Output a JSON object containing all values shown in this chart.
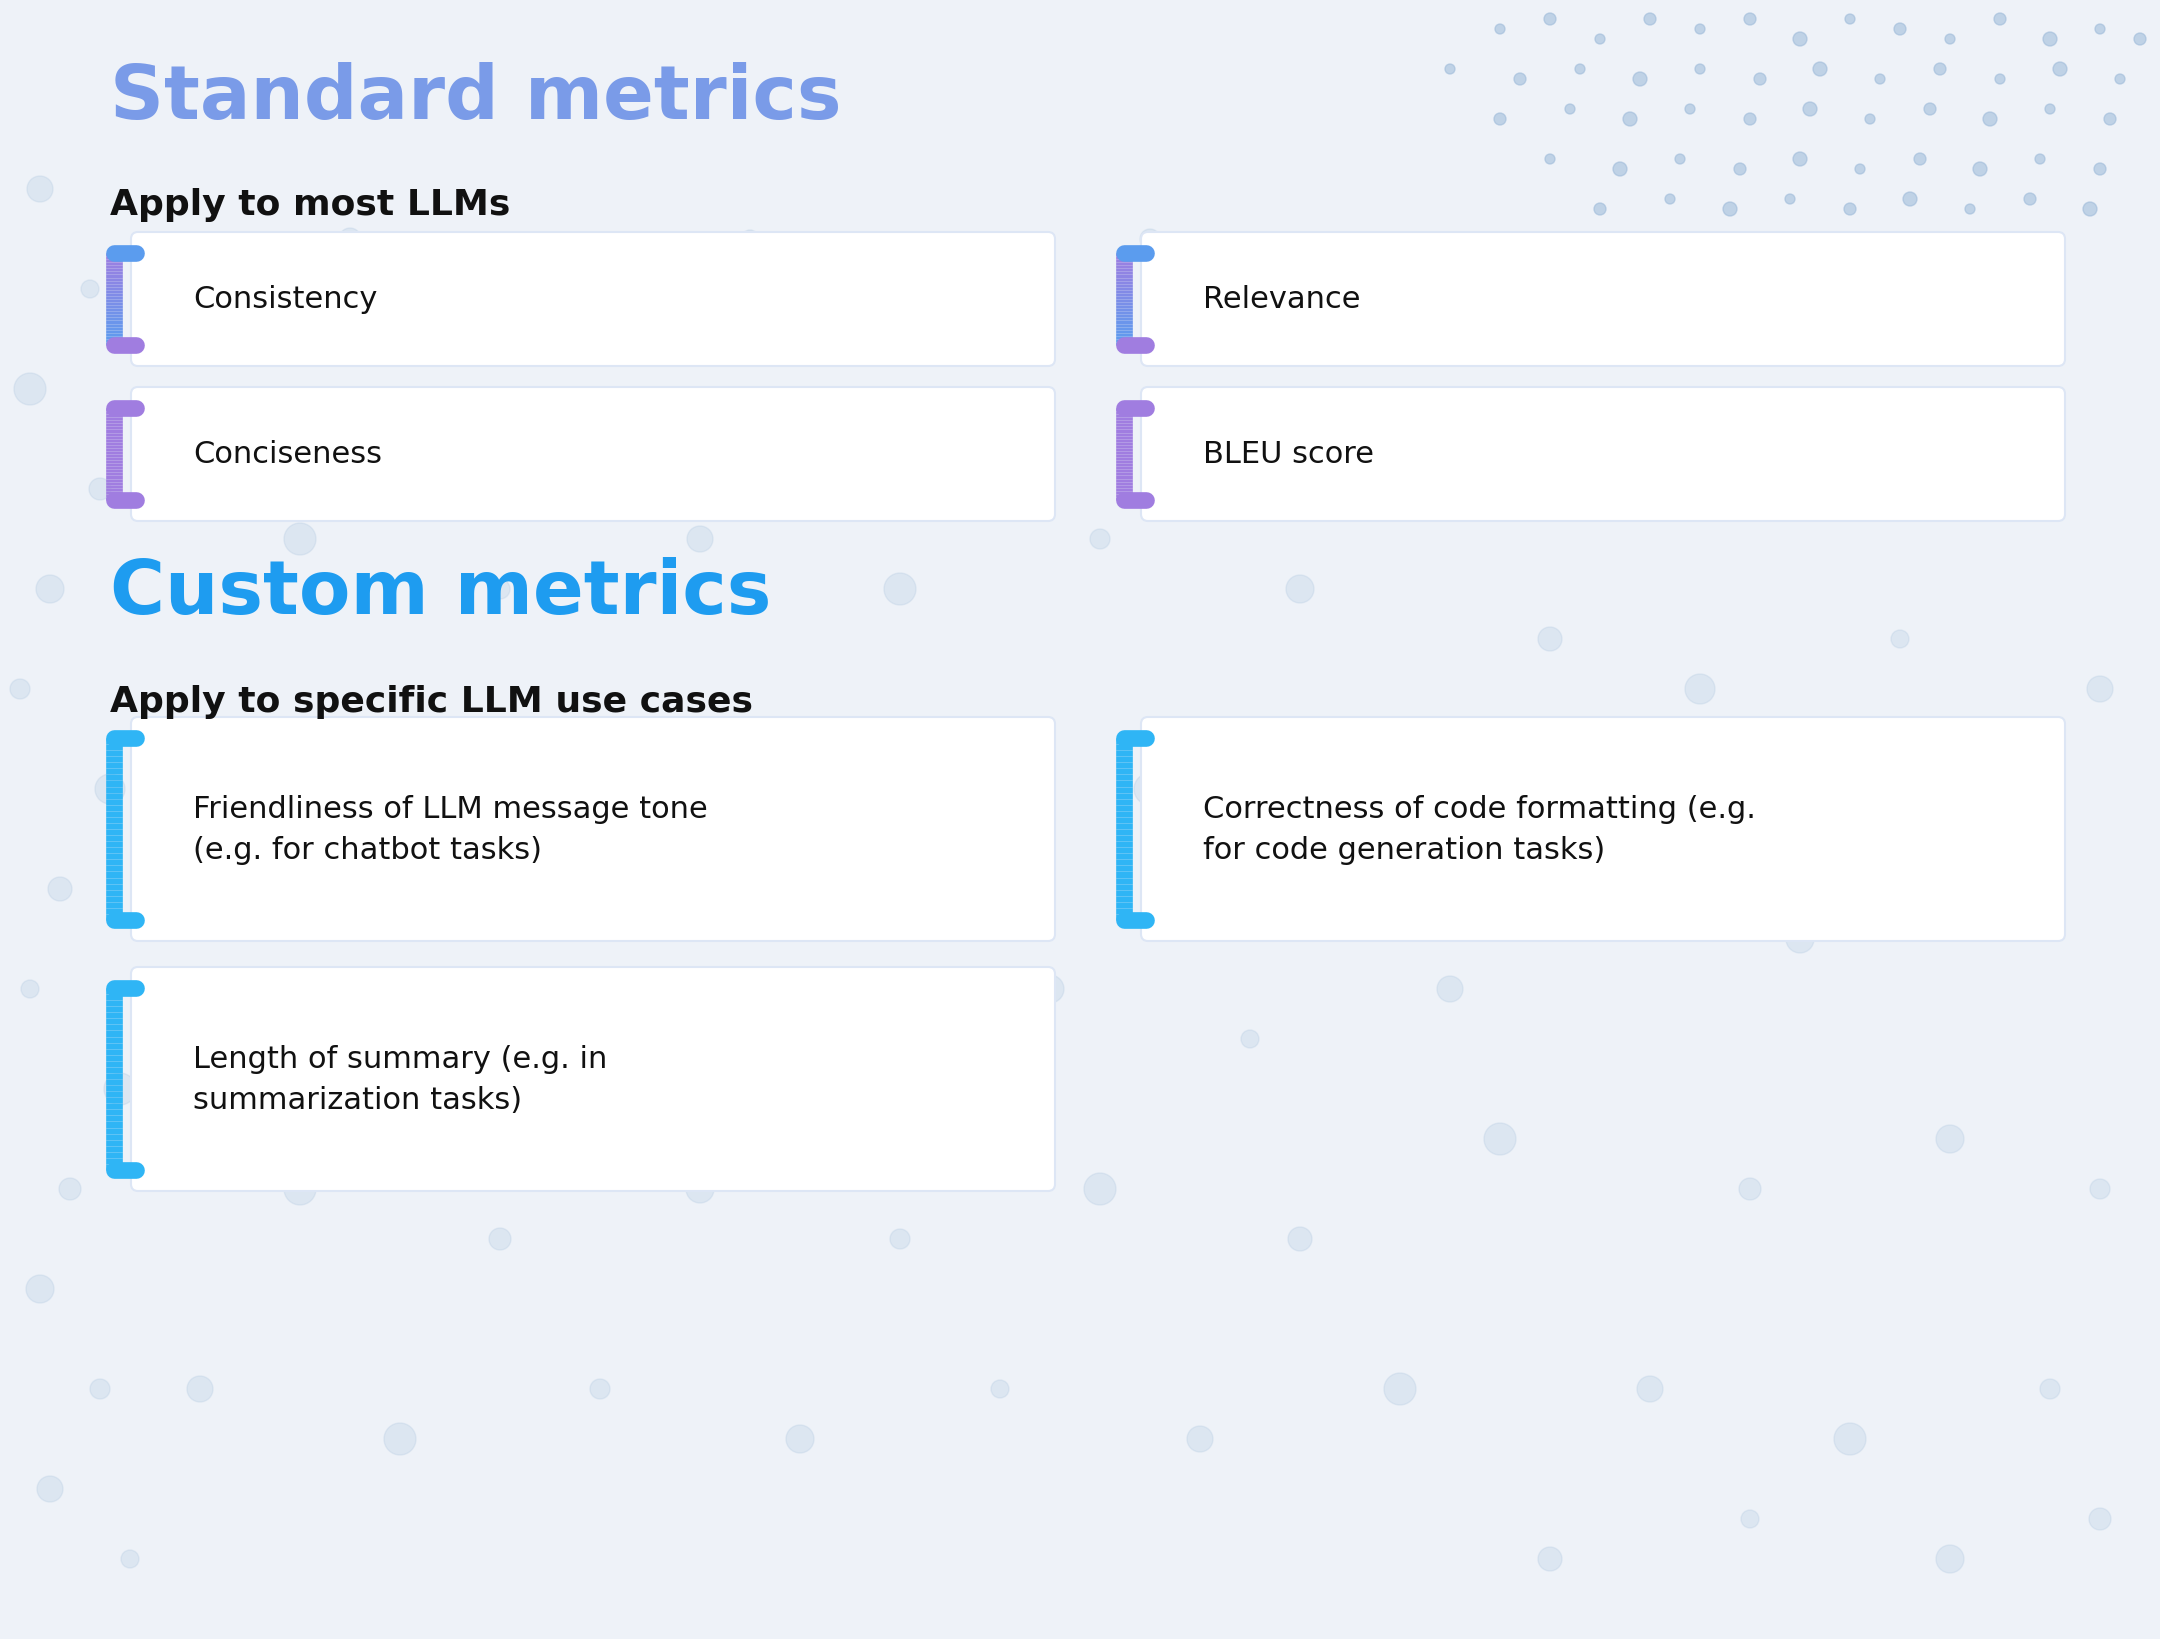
{
  "bg_color": "#eef2f8",
  "standard_title": "Standard metrics",
  "standard_subtitle": "Apply to most LLMs",
  "custom_title": "Custom metrics",
  "custom_subtitle": "Apply to specific LLM use cases",
  "standard_items": [
    "Consistency",
    "Conciseness",
    "Relevance",
    "BLEU score"
  ],
  "custom_items": [
    "Friendliness of LLM message tone\n(e.g. for chatbot tasks)",
    "Correctness of code formatting (e.g.\nfor code generation tasks)",
    "Length of summary (e.g. in\nsummarization tasks)"
  ],
  "card_bg": "#ffffff",
  "card_border": "#dde6f5",
  "subtitle_color": "#111111",
  "item_text_color": "#111111",
  "standard_title_color": "#7a9be8",
  "custom_title_color": "#1e9cf0",
  "bracket_color_blue": "#5b9cee",
  "bracket_color_purple": "#a07de0",
  "bracket_color_cyan": "#2fb5f5",
  "dot_color_tr": "#9ab8d8",
  "dot_color_bg": "#b0c8e0",
  "figwidth": 21.6,
  "figheight": 16.4,
  "dpi": 100
}
